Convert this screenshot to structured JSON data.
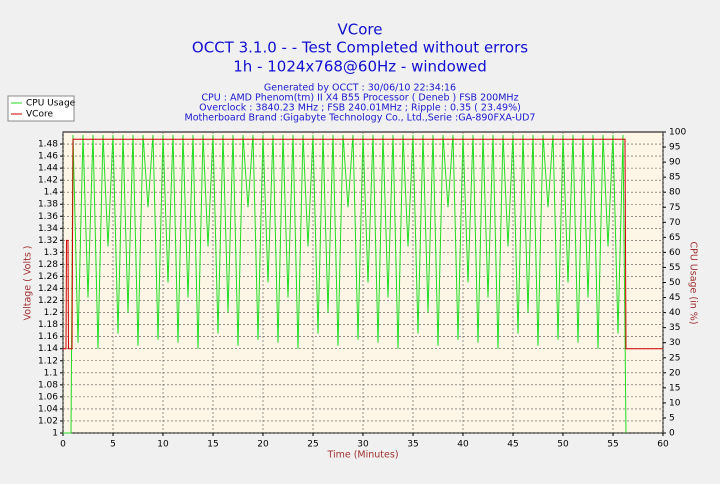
{
  "chart_data": {
    "type": "line",
    "title": "VCore",
    "subtitle": [
      "OCCT 3.1.0 -  - Test Completed without errors",
      "1h - 1024x768@60Hz - windowed"
    ],
    "annotations": [
      "Generated by OCCT : 30/06/10 22:34:16",
      "CPU : AMD Phenom(tm) II X4 B55 Processor ( Deneb ) FSB 200MHz",
      "Overclock : 3840.23 MHz ; FSB 240.01MHz ; Ripple : 0.35 ( 23.49%)",
      "Motherboard Brand :Gigabyte Technology Co., Ltd.,Serie :GA-890FXA-UD7"
    ],
    "x_label": "Time (Minutes)",
    "y_label": "Voltage ( Volts )",
    "y2_label": "CPU Usage (in %)",
    "xlim": [
      0,
      60
    ],
    "xticks": [
      0,
      5,
      10,
      15,
      20,
      25,
      30,
      35,
      40,
      45,
      50,
      55,
      60
    ],
    "ylim": [
      1,
      1.5
    ],
    "yticks": [
      1,
      1.02,
      1.04,
      1.06,
      1.08,
      1.1,
      1.12,
      1.14,
      1.16,
      1.18,
      1.2,
      1.22,
      1.24,
      1.26,
      1.28,
      1.3,
      1.32,
      1.34,
      1.36,
      1.38,
      1.4,
      1.42,
      1.44,
      1.46,
      1.48
    ],
    "y2lim": [
      0,
      100
    ],
    "y2ticks": [
      0,
      5,
      10,
      15,
      20,
      25,
      30,
      35,
      40,
      45,
      50,
      55,
      60,
      65,
      70,
      75,
      80,
      85,
      90,
      95,
      100
    ],
    "grid": true,
    "legend": "top-left",
    "series": [
      {
        "name": "CPU Usage",
        "color": "#22dd22",
        "axis": "y2",
        "x": [
          0,
          0.8,
          1,
          1.5,
          2,
          2.5,
          3,
          3.5,
          4,
          4.5,
          5,
          5.5,
          6,
          6.5,
          7,
          7.5,
          8,
          8.5,
          9,
          9.5,
          10,
          10.5,
          11,
          11.5,
          12,
          12.5,
          13,
          13.5,
          14,
          14.5,
          15,
          15.5,
          16,
          16.5,
          17,
          17.5,
          18,
          18.5,
          19,
          19.5,
          20,
          20.5,
          21,
          21.5,
          22,
          22.5,
          23,
          23.5,
          24,
          24.5,
          25,
          25.5,
          26,
          26.5,
          27,
          27.5,
          28,
          28.5,
          29,
          29.5,
          30,
          30.5,
          31,
          31.5,
          32,
          32.5,
          33,
          33.5,
          34,
          34.5,
          35,
          35.5,
          36,
          36.5,
          37,
          37.5,
          38,
          38.5,
          39,
          39.5,
          40,
          40.5,
          41,
          41.5,
          42,
          42.5,
          43,
          43.5,
          44,
          44.5,
          45,
          45.5,
          46,
          46.5,
          47,
          47.5,
          48,
          48.5,
          49,
          49.5,
          50,
          50.5,
          51,
          51.5,
          52,
          52.5,
          53,
          53.5,
          54,
          54.5,
          55,
          55.5,
          56,
          56.3
        ],
        "values": [
          0,
          0,
          99,
          30,
          99,
          45,
          99,
          28,
          99,
          62,
          99,
          33,
          99,
          40,
          99,
          29,
          99,
          75,
          99,
          31,
          99,
          50,
          99,
          30,
          99,
          45,
          99,
          28,
          99,
          62,
          99,
          33,
          99,
          40,
          99,
          29,
          99,
          75,
          99,
          31,
          99,
          50,
          99,
          30,
          99,
          45,
          99,
          28,
          99,
          62,
          99,
          33,
          99,
          40,
          99,
          29,
          99,
          75,
          99,
          31,
          99,
          50,
          99,
          30,
          99,
          45,
          99,
          28,
          99,
          62,
          99,
          33,
          99,
          40,
          99,
          29,
          99,
          75,
          99,
          31,
          99,
          50,
          99,
          30,
          99,
          45,
          99,
          28,
          99,
          62,
          99,
          33,
          99,
          40,
          99,
          29,
          99,
          75,
          99,
          31,
          99,
          50,
          99,
          30,
          99,
          45,
          99,
          28,
          99,
          62,
          99,
          33,
          99,
          0
        ]
      },
      {
        "name": "VCore",
        "color": "#cc0000",
        "axis": "y",
        "x": [
          0,
          0.3,
          0.35,
          0.5,
          0.55,
          0.9,
          1,
          56.2,
          56.3,
          60
        ],
        "values": [
          1.14,
          1.14,
          1.32,
          1.32,
          1.14,
          1.14,
          1.488,
          1.488,
          1.14,
          1.14
        ]
      }
    ]
  }
}
